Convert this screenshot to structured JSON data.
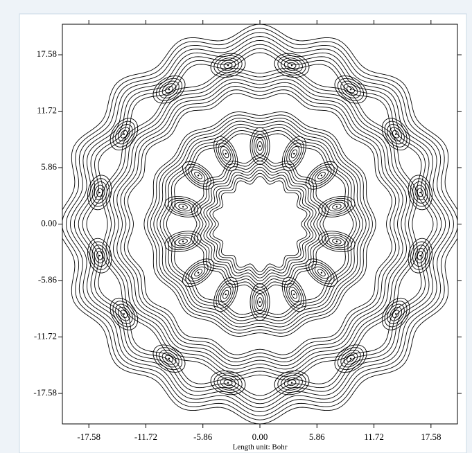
{
  "chart_data": {
    "type": "contour",
    "xlabel": "Length unit: Bohr",
    "xlim": [
      -20.3,
      20.3
    ],
    "ylim": [
      -20.75,
      20.75
    ],
    "xticks": [
      -17.58,
      -11.72,
      -5.86,
      {
        "value": 0,
        "label": "0.00"
      },
      5.86,
      11.72,
      17.58
    ],
    "yticks": [
      -17.58,
      -11.72,
      -5.86,
      {
        "value": 0,
        "label": "0.00"
      },
      5.86,
      11.72,
      17.58
    ],
    "color": "#000000"
  }
}
